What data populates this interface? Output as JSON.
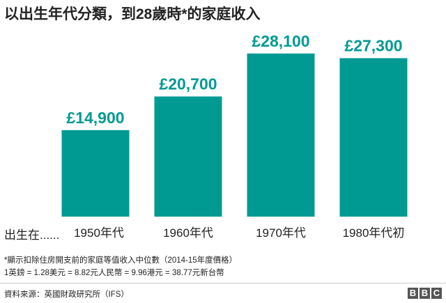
{
  "chart_data": {
    "type": "bar",
    "title": "以出生年代分類，到28歲時*的家庭收入",
    "x_prefix": "出生在......",
    "categories": [
      "1950年代",
      "1960年代",
      "1970年代",
      "1980年代初"
    ],
    "values": [
      14900,
      20700,
      28100,
      27300
    ],
    "value_labels": [
      "£14,900",
      "£20,700",
      "£28,100",
      "£27,300"
    ],
    "ylim": [
      0,
      30000
    ],
    "grid": false,
    "legend": "none",
    "colors": {
      "bar": "#009a93",
      "label": "#009a93"
    }
  },
  "notes": {
    "line1": "*顯示扣除住房開支前的家庭等值收入中位數（2014-15年度價格）",
    "line2": "1英鎊 = 1.28美元 = 8.82元人民幣 = 9.96港元 = 38.77元新台幣"
  },
  "source": "資料來源：英國財政研究所（IFS）",
  "brand": {
    "logo_letters": [
      "B",
      "B",
      "C"
    ]
  }
}
